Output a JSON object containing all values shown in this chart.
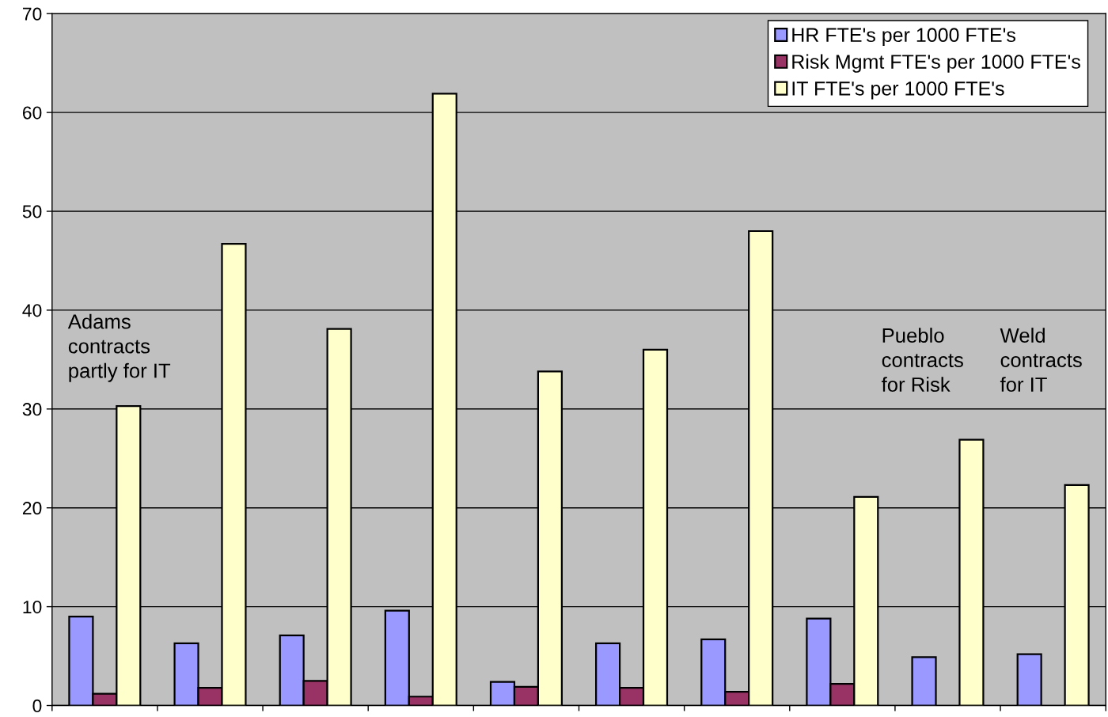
{
  "chart_data": {
    "type": "bar",
    "categories": [
      null,
      null,
      null,
      null,
      null,
      null,
      null,
      null,
      null,
      null
    ],
    "series": [
      {
        "name": "HR FTE's per 1000 FTE's",
        "color": "#9999ff",
        "values": [
          9.0,
          6.3,
          7.1,
          9.6,
          2.4,
          6.3,
          6.7,
          8.8,
          4.9,
          5.2
        ]
      },
      {
        "name": "Risk Mgmt FTE's per 1000 FTE's",
        "color": "#993366",
        "values": [
          1.2,
          1.8,
          2.5,
          0.9,
          1.9,
          1.8,
          1.4,
          2.2,
          null,
          null
        ]
      },
      {
        "name": "IT FTE's per 1000 FTE's",
        "color": "#ffffcc",
        "values": [
          30.3,
          46.7,
          38.1,
          61.9,
          33.8,
          36.0,
          48.0,
          21.1,
          26.9,
          22.3
        ]
      }
    ],
    "ylim": [
      0,
      70
    ],
    "yticks": [
      0,
      10,
      20,
      30,
      40,
      50,
      60,
      70
    ],
    "grid": "y",
    "legend": "top right",
    "tick_labels": "y",
    "annotations": [
      "Adams\ncontracts\npartly for IT",
      "Pueblo\ncontracts\nfor Risk",
      "Weld\ncontracts\nfor IT"
    ]
  }
}
